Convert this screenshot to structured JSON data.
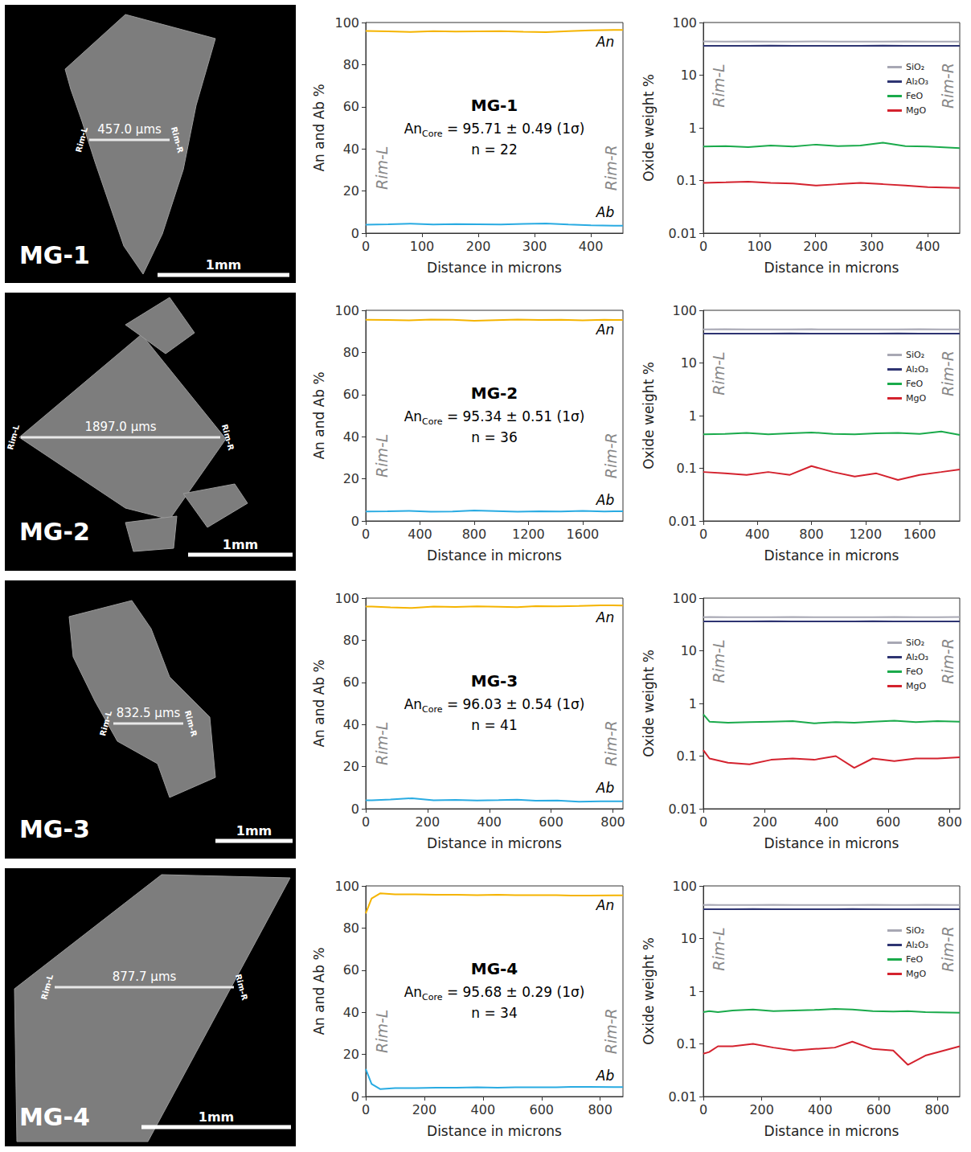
{
  "chart_data": [
    {
      "type": "line",
      "title": "MG-1",
      "annotations": {
        "core": {
          "main": "An",
          "sub": "Core",
          "text": " = 95.71 ± 0.49 (1σ)"
        },
        "n": "n = 22",
        "rim_left": "Rim-L",
        "rim_right": "Rim-R"
      },
      "x": [
        0,
        40,
        80,
        120,
        160,
        200,
        240,
        280,
        320,
        360,
        400,
        457
      ],
      "series": [
        {
          "name": "An",
          "color": "#f5b400",
          "values": [
            96.0,
            95.8,
            95.5,
            95.9,
            95.7,
            95.8,
            95.9,
            95.6,
            95.4,
            95.9,
            96.3,
            96.5
          ]
        },
        {
          "name": "Ab",
          "color": "#29abe2",
          "values": [
            4.0,
            4.2,
            4.5,
            4.1,
            4.3,
            4.2,
            4.1,
            4.4,
            4.6,
            4.1,
            3.7,
            3.5
          ]
        }
      ],
      "xlim": [
        0,
        457
      ],
      "xticks": [
        0,
        100,
        200,
        300,
        400
      ],
      "ylim": [
        0,
        100
      ],
      "yticks": [
        0,
        20,
        40,
        60,
        80,
        100
      ],
      "x_label": "Distance in microns",
      "y_label": "An and Ab %"
    },
    {
      "type": "line",
      "log": "y",
      "legend": "right",
      "annotations": {
        "rim_left": "Rim-L",
        "rim_right": "Rim-R"
      },
      "x": [
        0,
        40,
        80,
        120,
        160,
        200,
        240,
        280,
        320,
        360,
        400,
        457
      ],
      "series": [
        {
          "name": "SiO₂",
          "color": "#a8a8b4",
          "values": [
            43.6,
            43.5,
            43.6,
            43.4,
            43.5,
            43.6,
            43.5,
            43.4,
            43.5,
            43.6,
            43.5,
            43.5
          ]
        },
        {
          "name": "Al₂O₃",
          "color": "#2e3472",
          "values": [
            36.2,
            36.1,
            36.2,
            36.3,
            36.2,
            36.1,
            36.2,
            36.2,
            36.3,
            36.2,
            36.1,
            36.2
          ]
        },
        {
          "name": "FeO",
          "color": "#1aaa4b",
          "values": [
            0.44,
            0.45,
            0.43,
            0.46,
            0.44,
            0.48,
            0.45,
            0.46,
            0.52,
            0.45,
            0.44,
            0.41
          ]
        },
        {
          "name": "MgO",
          "color": "#d4222e",
          "values": [
            0.09,
            0.092,
            0.095,
            0.09,
            0.088,
            0.08,
            0.085,
            0.09,
            0.085,
            0.08,
            0.075,
            0.072
          ]
        }
      ],
      "xlim": [
        0,
        457
      ],
      "xticks": [
        0,
        100,
        200,
        300,
        400
      ],
      "ylim": [
        0.01,
        100
      ],
      "yticks": [
        0.01,
        0.1,
        1,
        10,
        100
      ],
      "x_label": "Distance in microns",
      "y_label": "Oxide weight %"
    },
    {
      "type": "line",
      "title": "MG-2",
      "annotations": {
        "core": {
          "main": "An",
          "sub": "Core",
          "text": " = 95.34 ± 0.51 (1σ)"
        },
        "n": "n = 36",
        "rim_left": "Rim-L",
        "rim_right": "Rim-R"
      },
      "x": [
        0,
        160,
        320,
        480,
        640,
        800,
        960,
        1120,
        1280,
        1440,
        1600,
        1760,
        1897
      ],
      "series": [
        {
          "name": "An",
          "color": "#f5b400",
          "values": [
            95.5,
            95.4,
            95.2,
            95.6,
            95.5,
            95.0,
            95.3,
            95.6,
            95.4,
            95.5,
            95.2,
            95.5,
            95.4
          ]
        },
        {
          "name": "Ab",
          "color": "#29abe2",
          "values": [
            4.5,
            4.6,
            4.8,
            4.4,
            4.5,
            5.0,
            4.7,
            4.4,
            4.6,
            4.5,
            4.8,
            4.5,
            4.6
          ]
        }
      ],
      "xlim": [
        0,
        1897
      ],
      "xticks": [
        0,
        400,
        800,
        1200,
        1600
      ],
      "ylim": [
        0,
        100
      ],
      "yticks": [
        0,
        20,
        40,
        60,
        80,
        100
      ],
      "x_label": "Distance in microns",
      "y_label": "An and Ab %"
    },
    {
      "type": "line",
      "log": "y",
      "legend": "right",
      "annotations": {
        "rim_left": "Rim-L",
        "rim_right": "Rim-R"
      },
      "x": [
        0,
        160,
        320,
        480,
        640,
        800,
        960,
        1120,
        1280,
        1440,
        1600,
        1760,
        1897
      ],
      "series": [
        {
          "name": "SiO₂",
          "color": "#a8a8b4",
          "values": [
            43.5,
            43.6,
            43.5,
            43.4,
            43.5,
            43.6,
            43.5,
            43.5,
            43.4,
            43.5,
            43.6,
            43.5,
            43.5
          ]
        },
        {
          "name": "Al₂O₃",
          "color": "#2e3472",
          "values": [
            36.2,
            36.1,
            36.2,
            36.2,
            36.3,
            36.2,
            36.1,
            36.2,
            36.2,
            36.3,
            36.2,
            36.1,
            36.2
          ]
        },
        {
          "name": "FeO",
          "color": "#1aaa4b",
          "values": [
            0.44,
            0.45,
            0.47,
            0.44,
            0.46,
            0.48,
            0.45,
            0.44,
            0.46,
            0.47,
            0.45,
            0.5,
            0.43
          ]
        },
        {
          "name": "MgO",
          "color": "#d4222e",
          "values": [
            0.085,
            0.08,
            0.075,
            0.085,
            0.075,
            0.11,
            0.085,
            0.07,
            0.08,
            0.06,
            0.075,
            0.085,
            0.095
          ]
        }
      ],
      "xlim": [
        0,
        1897
      ],
      "xticks": [
        0,
        400,
        800,
        1200,
        1600
      ],
      "ylim": [
        0.01,
        100
      ],
      "yticks": [
        0.01,
        0.1,
        1,
        10,
        100
      ],
      "x_label": "Distance in microns",
      "y_label": "Oxide weight %"
    },
    {
      "type": "line",
      "title": "MG-3",
      "annotations": {
        "core": {
          "main": "An",
          "sub": "Core",
          "text": " = 96.03 ± 0.54 (1σ)"
        },
        "n": "n = 41",
        "rim_left": "Rim-L",
        "rim_right": "Rim-R"
      },
      "x": [
        0,
        20,
        80,
        150,
        220,
        290,
        360,
        430,
        490,
        550,
        620,
        690,
        760,
        832.5
      ],
      "series": [
        {
          "name": "An",
          "color": "#f5b400",
          "values": [
            96.0,
            96.0,
            95.6,
            95.3,
            96.0,
            95.8,
            96.1,
            95.9,
            95.7,
            96.2,
            96.1,
            96.3,
            96.6,
            96.5
          ]
        },
        {
          "name": "Ab",
          "color": "#29abe2",
          "values": [
            4.0,
            4.0,
            4.4,
            5.0,
            4.0,
            4.2,
            3.9,
            4.1,
            4.3,
            3.8,
            3.9,
            3.3,
            3.5,
            3.5
          ]
        }
      ],
      "xlim": [
        0,
        832.5
      ],
      "xticks": [
        0,
        200,
        400,
        600,
        800
      ],
      "ylim": [
        0,
        100
      ],
      "yticks": [
        0,
        20,
        40,
        60,
        80,
        100
      ],
      "x_label": "Distance in microns",
      "y_label": "An and Ab %"
    },
    {
      "type": "line",
      "log": "y",
      "legend": "right",
      "annotations": {
        "rim_left": "Rim-L",
        "rim_right": "Rim-R"
      },
      "x": [
        0,
        20,
        80,
        150,
        220,
        290,
        360,
        430,
        490,
        550,
        620,
        690,
        760,
        832.5
      ],
      "series": [
        {
          "name": "SiO₂",
          "color": "#a8a8b4",
          "values": [
            43.5,
            43.6,
            43.5,
            43.4,
            43.5,
            43.6,
            43.5,
            43.5,
            43.4,
            43.5,
            43.6,
            43.5,
            43.5,
            43.6
          ]
        },
        {
          "name": "Al₂O₃",
          "color": "#2e3472",
          "values": [
            36.2,
            36.1,
            36.2,
            36.2,
            36.3,
            36.2,
            36.1,
            36.2,
            36.2,
            36.3,
            36.2,
            36.1,
            36.2,
            36.2
          ]
        },
        {
          "name": "FeO",
          "color": "#1aaa4b",
          "values": [
            0.62,
            0.45,
            0.43,
            0.44,
            0.45,
            0.46,
            0.42,
            0.44,
            0.43,
            0.45,
            0.47,
            0.44,
            0.46,
            0.45
          ]
        },
        {
          "name": "MgO",
          "color": "#d4222e",
          "values": [
            0.13,
            0.09,
            0.075,
            0.07,
            0.085,
            0.09,
            0.085,
            0.1,
            0.06,
            0.09,
            0.08,
            0.09,
            0.09,
            0.095
          ]
        }
      ],
      "xlim": [
        0,
        832.5
      ],
      "xticks": [
        0,
        200,
        400,
        600,
        800
      ],
      "ylim": [
        0.01,
        100
      ],
      "yticks": [
        0.01,
        0.1,
        1,
        10,
        100
      ],
      "x_label": "Distance in microns",
      "y_label": "Oxide weight %"
    },
    {
      "type": "line",
      "title": "MG-4",
      "annotations": {
        "core": {
          "main": "An",
          "sub": "Core",
          "text": " = 95.68 ± 0.29 (1σ)"
        },
        "n": "n = 34",
        "rim_left": "Rim-L",
        "rim_right": "Rim-R"
      },
      "x": [
        0,
        20,
        50,
        100,
        170,
        240,
        310,
        380,
        450,
        510,
        580,
        650,
        700,
        760,
        877.7
      ],
      "series": [
        {
          "name": "An",
          "color": "#f5b400",
          "values": [
            87,
            94,
            96.5,
            96,
            96,
            95.8,
            95.8,
            95.6,
            95.8,
            95.6,
            95.6,
            95.6,
            95.4,
            95.4,
            95.5
          ]
        },
        {
          "name": "Ab",
          "color": "#29abe2",
          "values": [
            13,
            6,
            3.5,
            4,
            4,
            4.2,
            4.2,
            4.4,
            4.2,
            4.4,
            4.4,
            4.4,
            4.6,
            4.6,
            4.5
          ]
        }
      ],
      "xlim": [
        0,
        877.7
      ],
      "xticks": [
        0,
        200,
        400,
        600,
        800
      ],
      "ylim": [
        0,
        100
      ],
      "yticks": [
        0,
        20,
        40,
        60,
        80,
        100
      ],
      "x_label": "Distance in microns",
      "y_label": "An and Ab %"
    },
    {
      "type": "line",
      "log": "y",
      "legend": "right",
      "annotations": {
        "rim_left": "Rim-L",
        "rim_right": "Rim-R"
      },
      "x": [
        0,
        20,
        50,
        100,
        170,
        240,
        310,
        380,
        450,
        510,
        580,
        650,
        700,
        760,
        877.7
      ],
      "series": [
        {
          "name": "SiO₂",
          "color": "#a8a8b4",
          "values": [
            43.5,
            43.6,
            43.5,
            43.4,
            43.5,
            43.6,
            43.5,
            43.5,
            43.4,
            43.5,
            43.6,
            43.5,
            43.5,
            43.6,
            43.5
          ]
        },
        {
          "name": "Al₂O₃",
          "color": "#2e3472",
          "values": [
            36.2,
            36.1,
            36.2,
            36.2,
            36.3,
            36.2,
            36.1,
            36.2,
            36.2,
            36.3,
            36.2,
            36.1,
            36.2,
            36.2,
            36.1
          ]
        },
        {
          "name": "FeO",
          "color": "#1aaa4b",
          "values": [
            0.4,
            0.42,
            0.4,
            0.43,
            0.45,
            0.42,
            0.43,
            0.44,
            0.46,
            0.45,
            0.42,
            0.41,
            0.42,
            0.4,
            0.39
          ]
        },
        {
          "name": "MgO",
          "color": "#d4222e",
          "values": [
            0.065,
            0.07,
            0.09,
            0.09,
            0.1,
            0.085,
            0.075,
            0.08,
            0.085,
            0.11,
            0.08,
            0.075,
            0.04,
            0.06,
            0.09
          ]
        }
      ],
      "xlim": [
        0,
        877.7
      ],
      "xticks": [
        0,
        200,
        400,
        600,
        800
      ],
      "ylim": [
        0.01,
        100
      ],
      "yticks": [
        0.01,
        0.1,
        1,
        10,
        100
      ],
      "x_label": "Distance in microns",
      "y_label": "Oxide weight %"
    }
  ],
  "images": [
    {
      "label": "MG-1",
      "traverse": "457.0 µms",
      "rim_left": "Rim-L",
      "rim_right": "Rim-R",
      "scale": "1mm"
    },
    {
      "label": "MG-2",
      "traverse": "1897.0 µms",
      "rim_left": "Rim-L",
      "rim_right": "Rim-R",
      "scale": "1mm"
    },
    {
      "label": "MG-3",
      "traverse": "832.5 µms",
      "rim_left": "Rim-L",
      "rim_right": "Rim-R",
      "scale": "1mm"
    },
    {
      "label": "MG-4",
      "traverse": "877.7 µms",
      "rim_left": "Rim-L",
      "rim_right": "Rim-R",
      "scale": "1mm"
    }
  ]
}
